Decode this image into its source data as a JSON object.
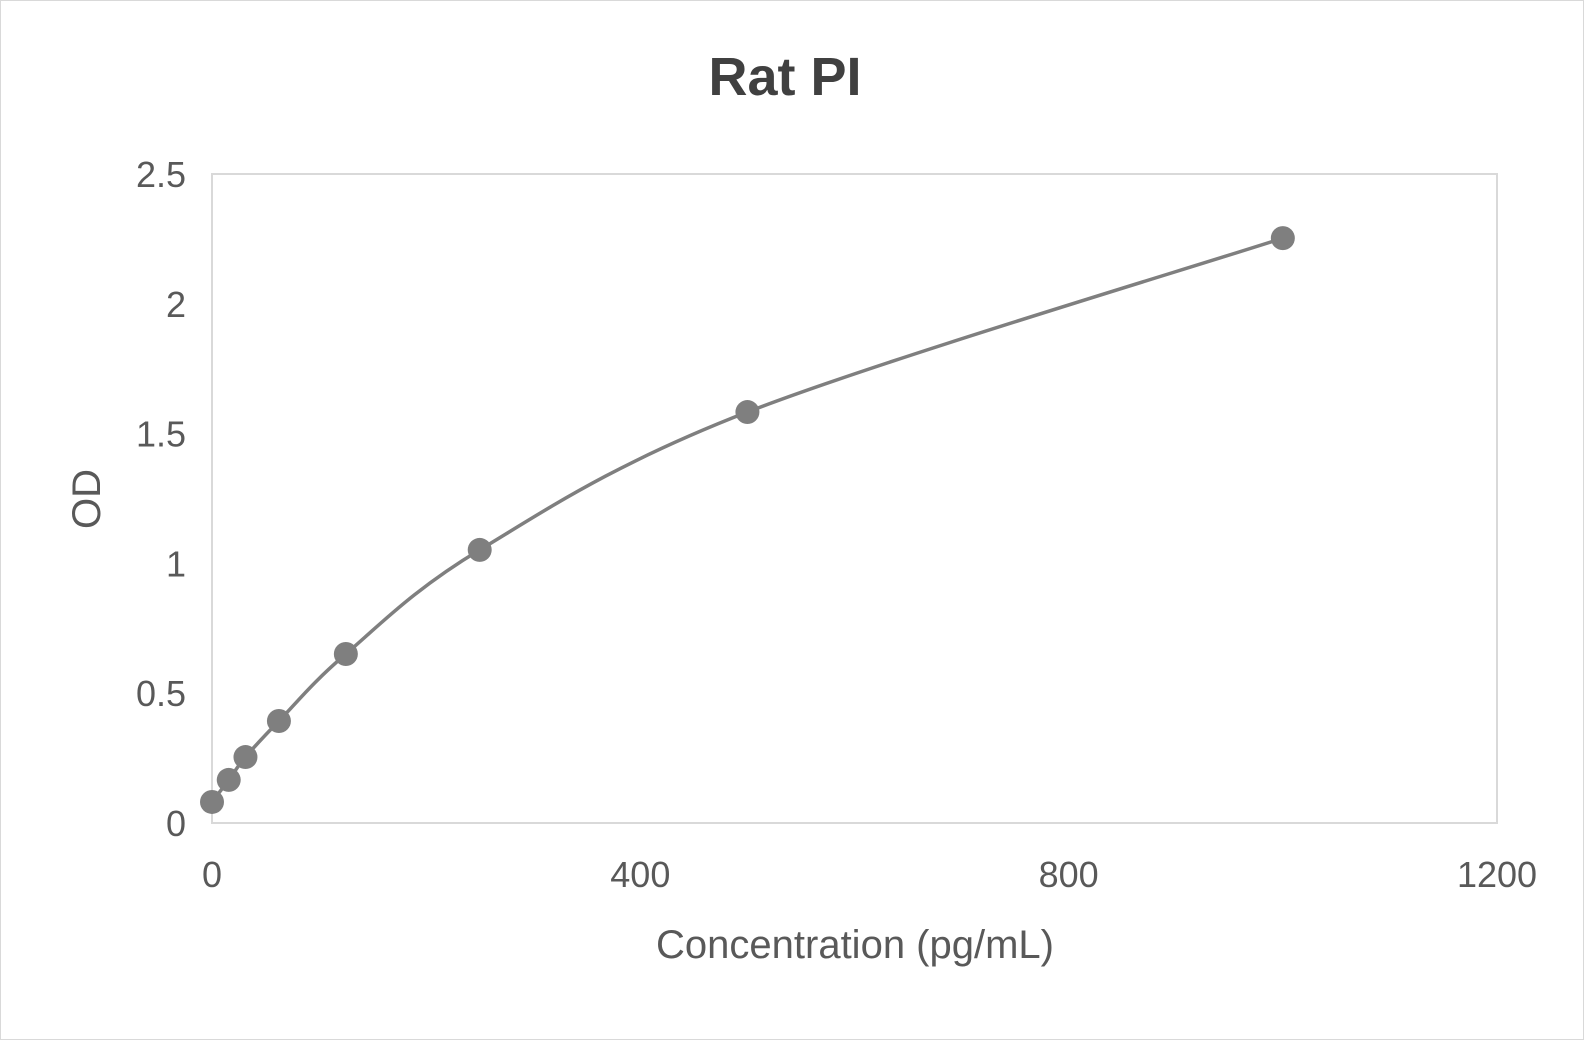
{
  "chart_data": {
    "type": "scatter",
    "title": "Rat PI",
    "xlabel": "Concentration (pg/mL)",
    "ylabel": "OD",
    "xlim": [
      0,
      1200
    ],
    "ylim": [
      0,
      2.5
    ],
    "xticks": [
      "0",
      "400",
      "800",
      "1200"
    ],
    "yticks": [
      "0",
      "0.5",
      "1",
      "1.5",
      "2",
      "2.5"
    ],
    "grid": false,
    "legend": "none",
    "line": "smooth",
    "color": "#7f7f7f",
    "series": [
      {
        "x": [
          0,
          15.625,
          31.25,
          62.5,
          125,
          250,
          500,
          1000
        ],
        "y": [
          0.081,
          0.166,
          0.254,
          0.393,
          0.651,
          1.052,
          1.583,
          2.253
        ]
      }
    ]
  }
}
